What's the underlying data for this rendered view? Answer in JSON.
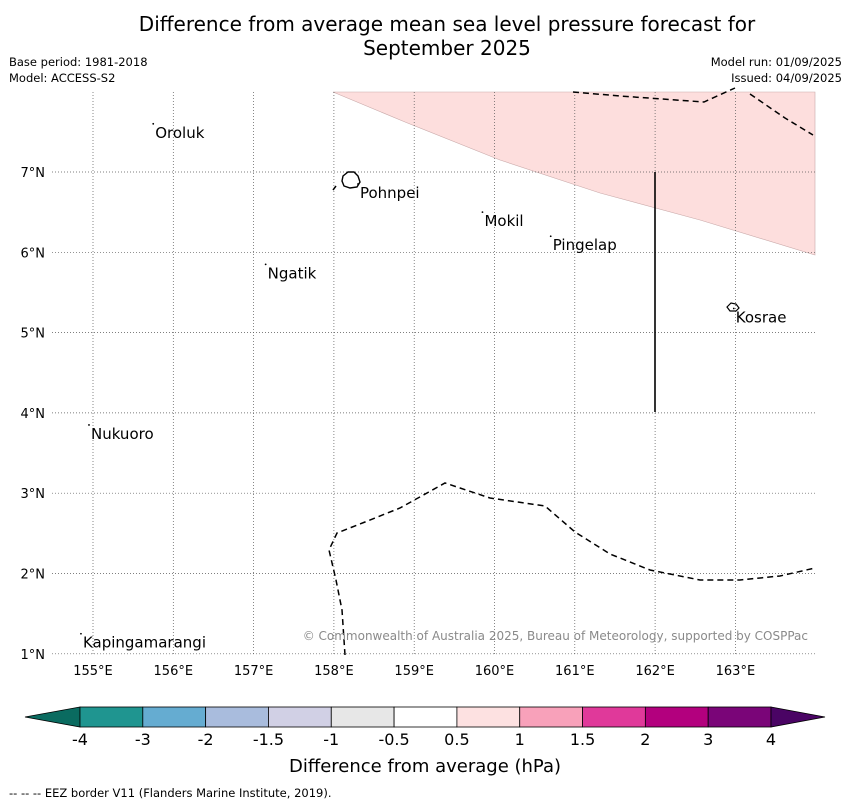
{
  "title_line1": "Difference from average mean sea level pressure forecast for",
  "title_line2": "September 2025",
  "meta_left": [
    "Base period: 1981-2018",
    "Model: ACCESS-S2"
  ],
  "meta_right": [
    "Model run: 01/09/2025",
    "Issued: 04/09/2025"
  ],
  "map": {
    "lon_range": [
      154.5,
      164.0
    ],
    "lat_range": [
      1.0,
      8.0
    ],
    "lon_ticks": [
      "155°E",
      "156°E",
      "157°E",
      "158°E",
      "159°E",
      "160°E",
      "161°E",
      "162°E",
      "163°E"
    ],
    "lat_ticks": [
      "7°N",
      "6°N",
      "5°N",
      "4°N",
      "3°N",
      "2°N",
      "1°N"
    ],
    "grid": true,
    "anomaly_fill_color": "#fddedd",
    "places": [
      {
        "name": "Oroluk",
        "lon": 155.75,
        "lat": 7.6
      },
      {
        "name": "Pohnpei",
        "lon": 158.3,
        "lat": 6.85
      },
      {
        "name": "Mokil",
        "lon": 159.85,
        "lat": 6.5
      },
      {
        "name": "Pingelap",
        "lon": 160.7,
        "lat": 6.2
      },
      {
        "name": "Ngatik",
        "lon": 157.15,
        "lat": 5.85
      },
      {
        "name": "Kosrae",
        "lon": 162.98,
        "lat": 5.3
      },
      {
        "name": "Nukuoro",
        "lon": 154.95,
        "lat": 3.85
      },
      {
        "name": "Kapingamarangi",
        "lon": 154.85,
        "lat": 1.25
      }
    ],
    "copyright": "© Commonwealth of Australia 2025, Bureau of Meteorology, supported by COSPPac"
  },
  "colorbar": {
    "labels": [
      "-4",
      "-3",
      "-2",
      "-1.5",
      "-1",
      "-0.5",
      "0.5",
      "1",
      "1.5",
      "2",
      "3",
      "4"
    ],
    "colors": [
      "#1f9590",
      "#65acd1",
      "#a9bcdd",
      "#d1d0e5",
      "#e7e7e7",
      "#ffffff",
      "#fde1e1",
      "#f8a1ba",
      "#e0399a",
      "#b3007e",
      "#7a0578"
    ],
    "low_extend_color": "#0a6b60",
    "high_extend_color": "#4a0464",
    "title": "Difference from average (hPa)"
  },
  "footer": "--  --  -- EEZ border V11 (Flanders Marine Institute, 2019)."
}
